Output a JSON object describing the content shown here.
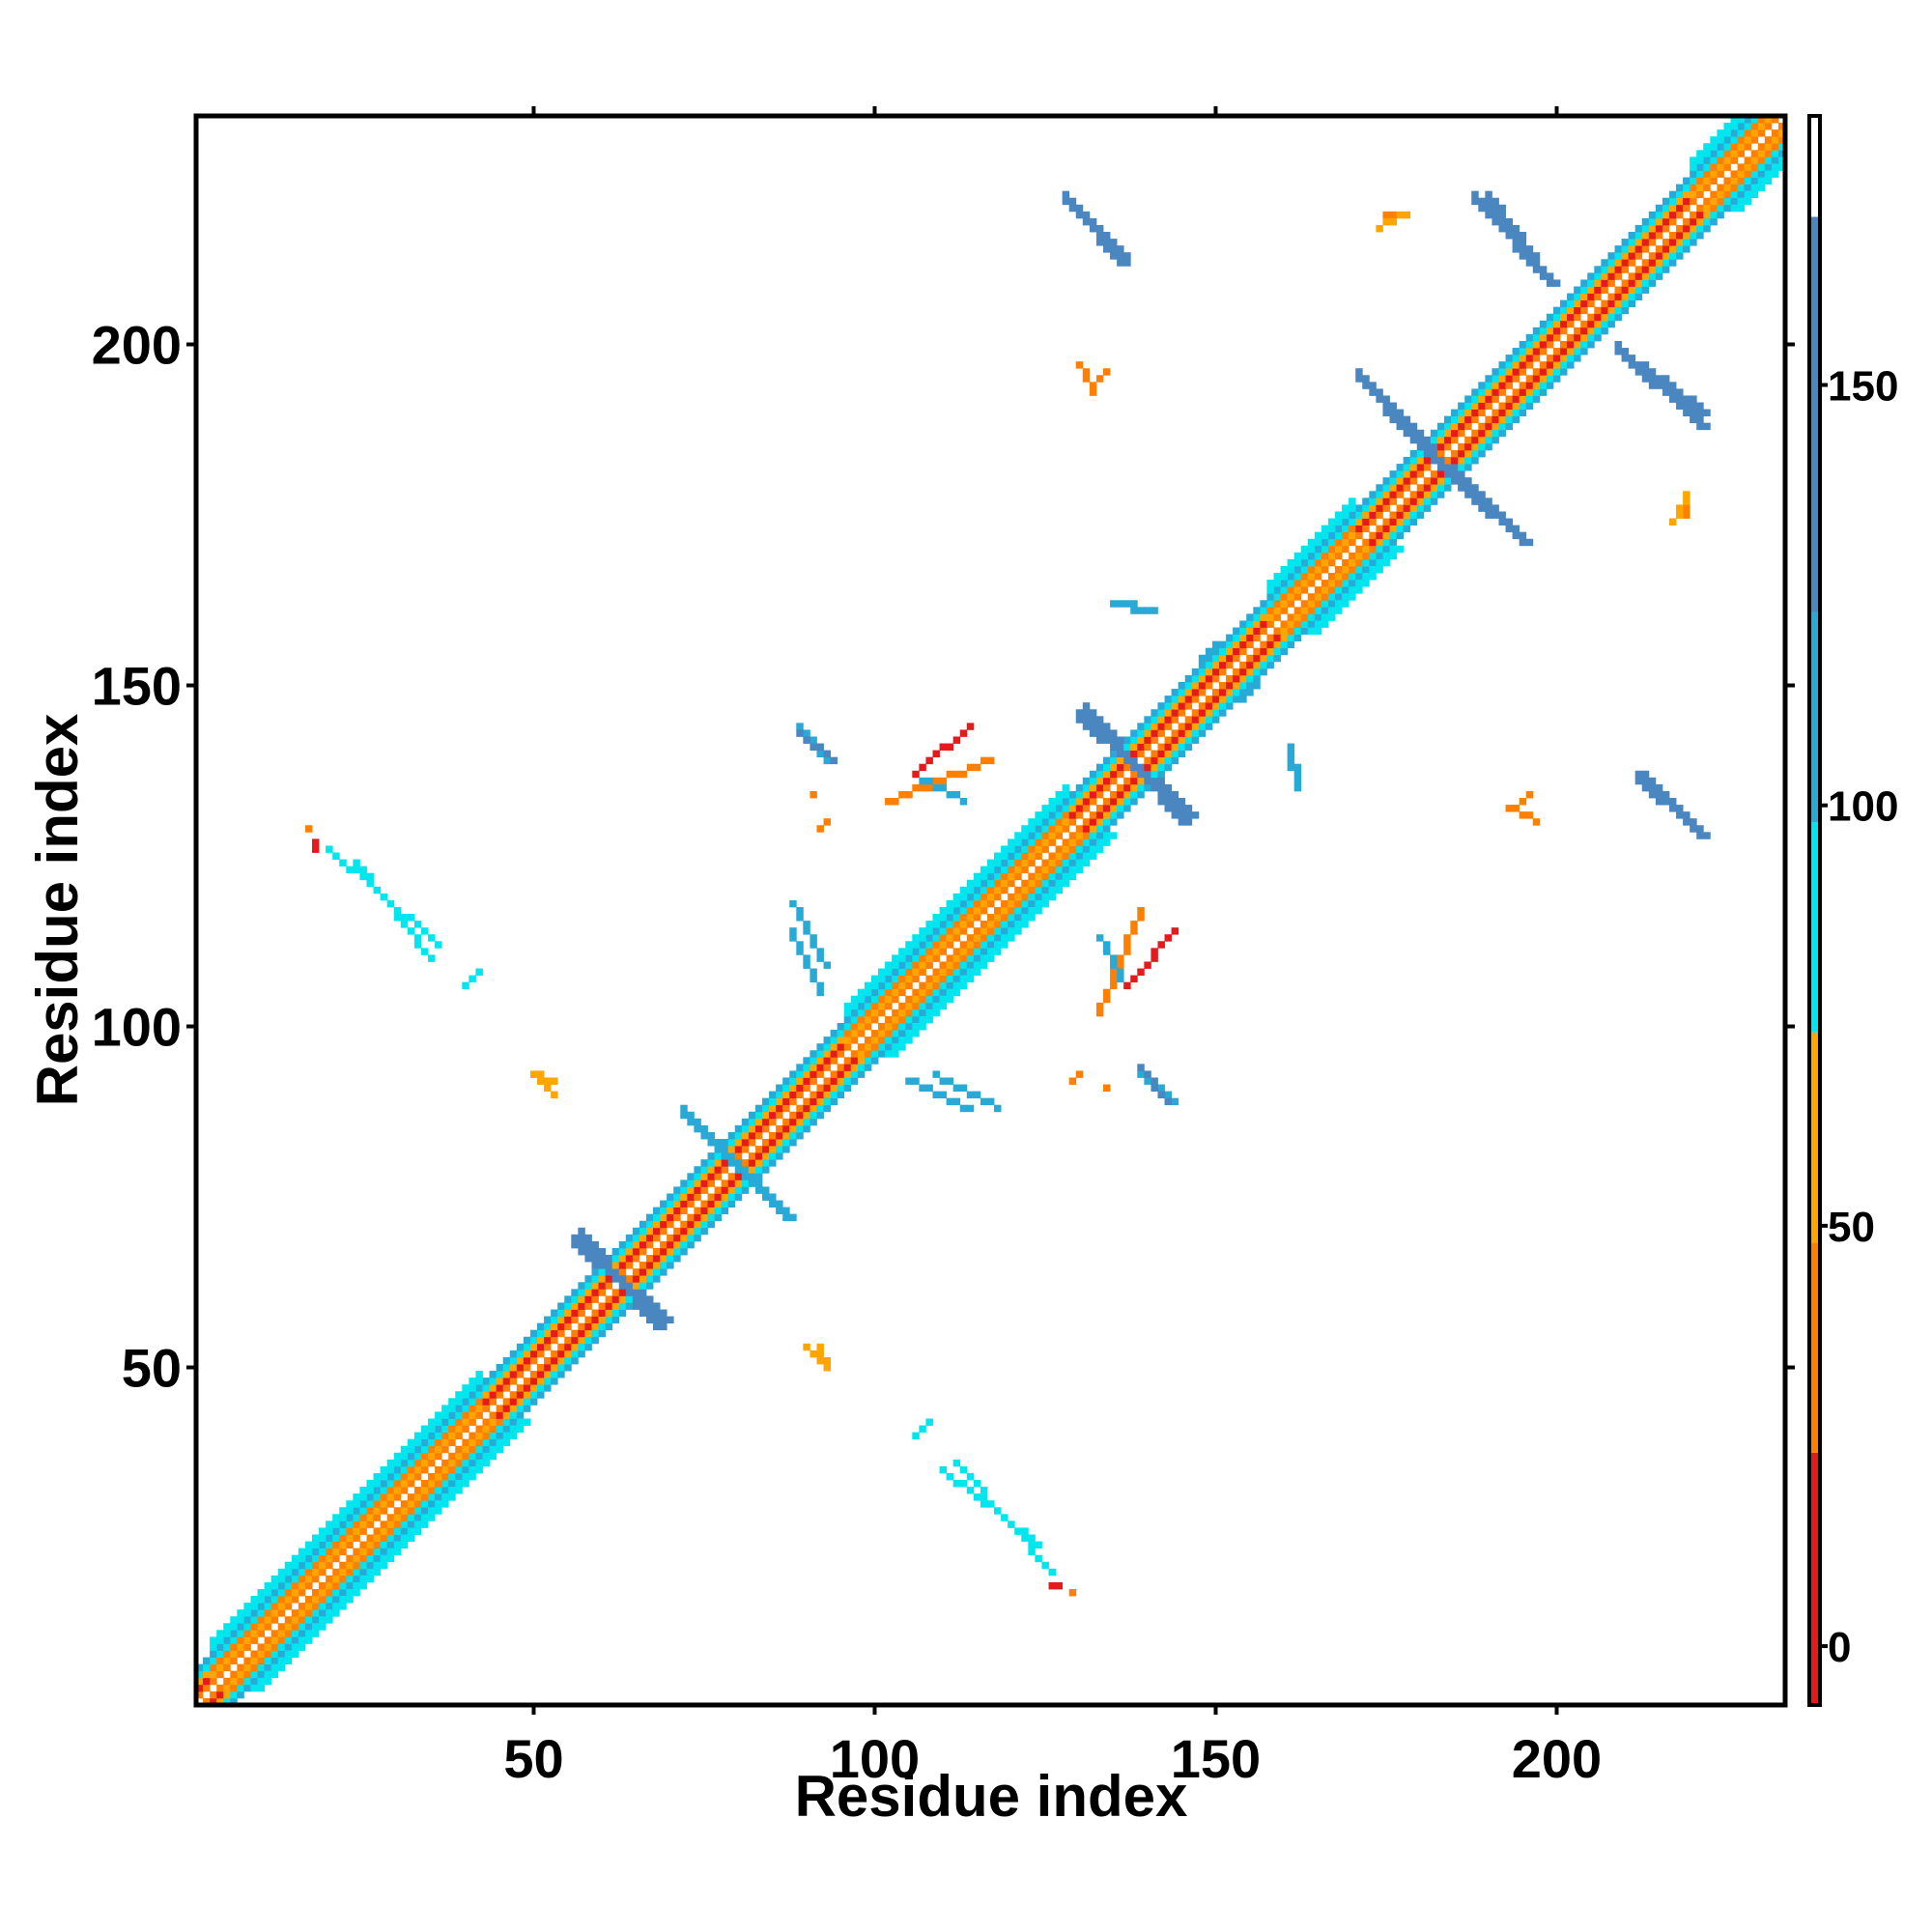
{
  "chart_data": {
    "type": "heatmap",
    "title": "",
    "xlabel": "Residue index",
    "ylabel": "Residue index",
    "xlim": [
      1,
      233
    ],
    "ylim": [
      1,
      233
    ],
    "x_ticks": [
      50,
      100,
      150,
      200
    ],
    "y_ticks": [
      50,
      100,
      150,
      200
    ],
    "x_tick_labels": [
      "50",
      "100",
      "150",
      "200"
    ],
    "y_tick_labels": [
      "50",
      "100",
      "150",
      "200"
    ],
    "colorbar": {
      "range": [
        -7,
        182
      ],
      "ticks": [
        0,
        50,
        100,
        150
      ],
      "tick_labels": [
        "0",
        "50",
        "100",
        "150"
      ],
      "bands": [
        {
          "from": -7,
          "to": 23,
          "color": "#e41a1c"
        },
        {
          "from": 23,
          "to": 48,
          "color": "#ff7f00"
        },
        {
          "from": 48,
          "to": 73,
          "color": "#ffa500"
        },
        {
          "from": 73,
          "to": 98,
          "color": "#00e5ee"
        },
        {
          "from": 98,
          "to": 123,
          "color": "#29a9d6"
        },
        {
          "from": 123,
          "to": 170,
          "color": "#4a86c0"
        },
        {
          "from": 170,
          "to": 182,
          "color": "#ffffff"
        }
      ]
    },
    "colors": {
      "red": "#e41a1c",
      "orange": "#ff7f00",
      "amber": "#ffa500",
      "cyan": "#00e5ee",
      "sky": "#29a9d6",
      "steel": "#4a86c0"
    },
    "grid": false,
    "legend": "colorbar right",
    "diagonal_band": {
      "from": 1,
      "to": 233,
      "offsets": [
        {
          "d": 1,
          "color": "orange"
        },
        {
          "d": 2,
          "color": "red"
        },
        {
          "d": 3,
          "color": "amber"
        },
        {
          "d": 4,
          "color": "cyan"
        },
        {
          "d": 5,
          "color": "sky"
        }
      ]
    },
    "helix_segments": [
      {
        "from": 3,
        "to": 42
      },
      {
        "from": 96,
        "to": 128
      },
      {
        "from": 158,
        "to": 170
      },
      {
        "from": 220,
        "to": 232
      }
    ],
    "contact_segments": [
      {
        "x0": 57,
        "y0": 69,
        "x1": 68,
        "y1": 56,
        "color": "steel",
        "w": 2
      },
      {
        "x0": 72,
        "y0": 87,
        "x1": 87,
        "y1": 72,
        "color": "sky",
        "w": 2
      },
      {
        "x0": 131,
        "y0": 146,
        "x1": 145,
        "y1": 130,
        "color": "steel",
        "w": 2
      },
      {
        "x0": 171,
        "y0": 195,
        "x1": 190,
        "y1": 175,
        "color": "steel",
        "w": 2
      },
      {
        "x0": 190,
        "y0": 221,
        "x1": 197,
        "y1": 211,
        "color": "steel",
        "w": 2
      },
      {
        "x0": 209,
        "y0": 199,
        "x1": 221,
        "y1": 188,
        "color": "steel",
        "w": 2
      },
      {
        "x0": 130,
        "y0": 219,
        "x1": 136,
        "y1": 212,
        "color": "steel",
        "w": 2
      },
      {
        "x0": 213,
        "y0": 136,
        "x1": 221,
        "y1": 128,
        "color": "steel",
        "w": 2
      },
      {
        "x0": 89,
        "y0": 144,
        "x1": 93,
        "y1": 139,
        "color": "sky",
        "w": 1
      },
      {
        "x0": 139,
        "y0": 94,
        "x1": 143,
        "y1": 89,
        "color": "steel",
        "w": 1
      },
      {
        "x0": 50,
        "y0": 93,
        "x1": 53,
        "y1": 92,
        "color": "amber",
        "w": 1
      },
      {
        "x0": 90,
        "y0": 53,
        "x1": 92,
        "y1": 51,
        "color": "amber",
        "w": 1
      },
      {
        "x0": 135,
        "y0": 162,
        "x1": 141,
        "y1": 161,
        "color": "sky",
        "w": 1
      },
      {
        "x0": 161,
        "y0": 140,
        "x1": 162,
        "y1": 135,
        "color": "sky",
        "w": 1
      },
      {
        "x0": 154,
        "y0": 148,
        "x1": 157,
        "y1": 152,
        "color": "sky",
        "w": 1
      },
      {
        "x0": 20,
        "y0": 126,
        "x1": 36,
        "y1": 112,
        "color": "cyan",
        "w": 1
      },
      {
        "x0": 110,
        "y0": 35,
        "x1": 124,
        "y1": 24,
        "color": "cyan",
        "w": 1
      },
      {
        "x0": 106,
        "y0": 137,
        "x1": 114,
        "y1": 144,
        "color": "red",
        "w": 1
      },
      {
        "x0": 133,
        "y0": 102,
        "x1": 139,
        "y1": 117,
        "color": "orange",
        "w": 1
      },
      {
        "x0": 132,
        "y0": 194,
        "x1": 134,
        "y1": 196,
        "color": "orange",
        "w": 1
      },
      {
        "x0": 197,
        "y0": 130,
        "x1": 193,
        "y1": 132,
        "color": "orange",
        "w": 1
      },
      {
        "x0": 219,
        "y0": 175,
        "x1": 219,
        "y1": 176,
        "color": "orange",
        "w": 1
      },
      {
        "x0": 174,
        "y0": 217,
        "x1": 178,
        "y1": 219,
        "color": "amber",
        "w": 1
      },
      {
        "x0": 88,
        "y0": 118,
        "x1": 93,
        "y1": 109,
        "color": "sky",
        "w": 1
      },
      {
        "x0": 105,
        "y0": 92,
        "x1": 114,
        "y1": 88,
        "color": "sky",
        "w": 1
      },
      {
        "x0": 133,
        "y0": 113,
        "x1": 136,
        "y1": 107,
        "color": "sky",
        "w": 1
      },
      {
        "x0": 106,
        "y0": 40,
        "x1": 108,
        "y1": 42,
        "color": "cyan",
        "w": 1
      },
      {
        "x0": 129,
        "y0": 92,
        "x1": 130,
        "y1": 93,
        "color": "orange",
        "w": 1
      },
      {
        "x0": 126,
        "y0": 18,
        "x1": 127,
        "y1": 18,
        "color": "red",
        "w": 1
      },
      {
        "x0": 91,
        "y0": 134,
        "x1": 91,
        "y1": 134,
        "color": "orange",
        "w": 1
      },
      {
        "x0": 17,
        "y0": 129,
        "x1": 17,
        "y1": 129,
        "color": "orange",
        "w": 1
      }
    ]
  }
}
